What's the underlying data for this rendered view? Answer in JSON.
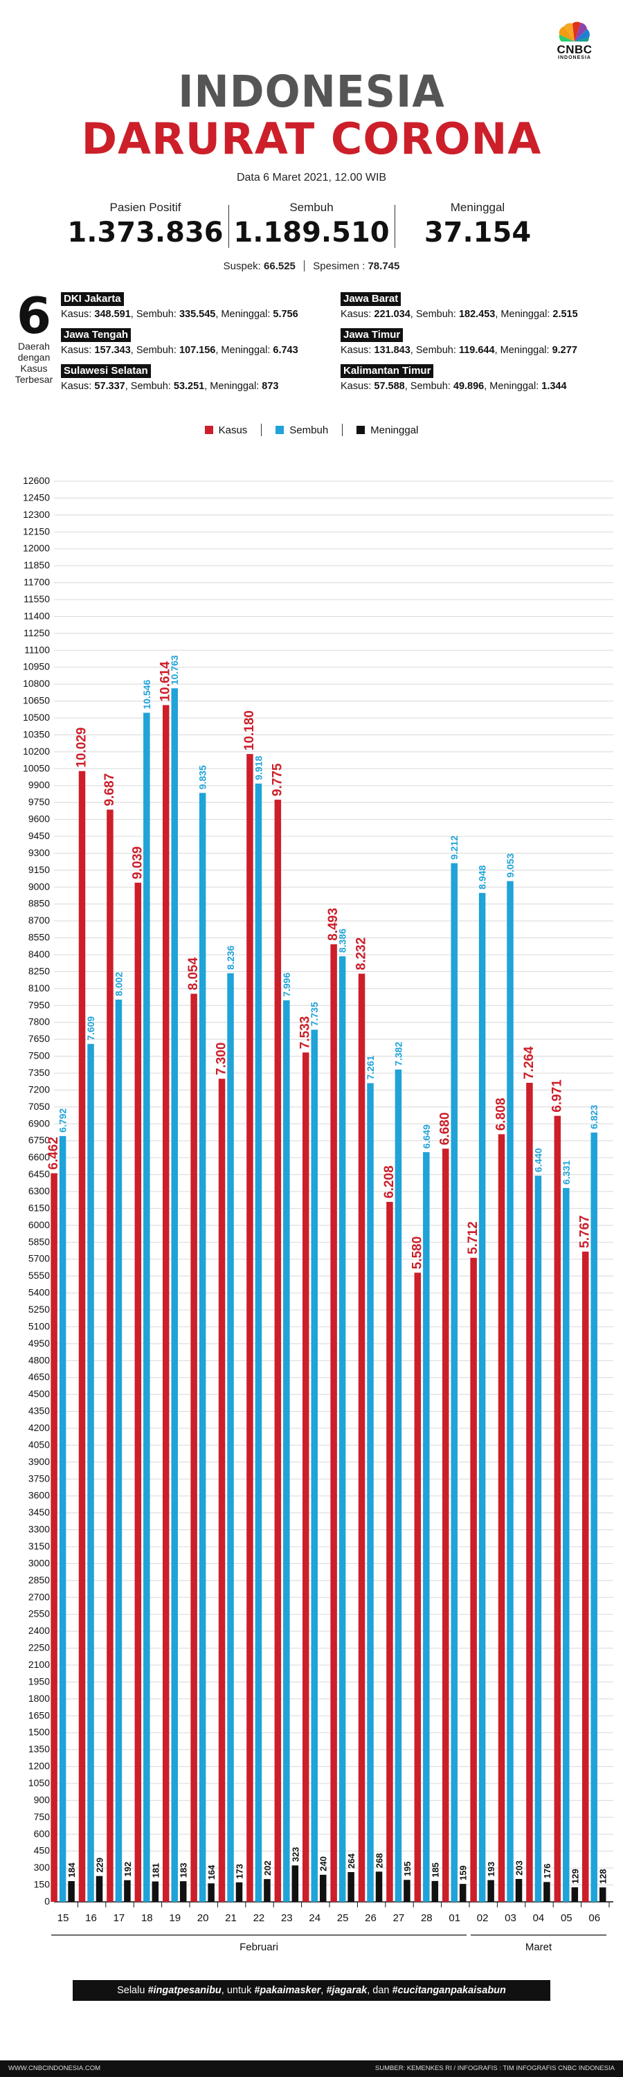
{
  "logo": {
    "text": "CNBC",
    "sub": "INDONESIA"
  },
  "header": {
    "title_line1": "INDONESIA",
    "title_line2": "DARURAT CORONA",
    "date": "Data 6 Maret 2021, 12.00 WIB"
  },
  "stats": [
    {
      "label": "Pasien Positif",
      "value": "1.373.836"
    },
    {
      "label": "Sembuh",
      "value": "1.189.510"
    },
    {
      "label": "Meninggal",
      "value": "37.154"
    }
  ],
  "substats": {
    "suspek_label": "Suspek:",
    "suspek_value": "66.525",
    "spesimen_label": "Spesimen :",
    "spesimen_value": "78.745"
  },
  "regions_intro": {
    "number": "6",
    "text_line1": "Daerah",
    "text_line2": "dengan",
    "text_line3": "Kasus",
    "text_line4": "Terbesar"
  },
  "regions": [
    {
      "name": "DKI Jakarta",
      "kasus": "348.591",
      "sembuh": "335.545",
      "meninggal": "5.756"
    },
    {
      "name": "Jawa Barat",
      "kasus": "221.034",
      "sembuh": "182.453",
      "meninggal": "2.515"
    },
    {
      "name": "Jawa Tengah",
      "kasus": "157.343",
      "sembuh": "107.156",
      "meninggal": "6.743"
    },
    {
      "name": "Jawa Timur",
      "kasus": "131.843",
      "sembuh": "119.644",
      "meninggal": "9.277"
    },
    {
      "name": "Sulawesi Selatan",
      "kasus": "57.337",
      "sembuh": "53.251",
      "meninggal": "873"
    },
    {
      "name": "Kalimantan Timur",
      "kasus": "57.588",
      "sembuh": "49.896",
      "meninggal": "1.344"
    }
  ],
  "region_labels": {
    "kasus": "Kasus:",
    "sembuh": "Sembuh:",
    "meninggal": "Meninggal:"
  },
  "colors": {
    "kasus": "#cc1f2a",
    "sembuh": "#1fa3d8",
    "meninggal": "#111111",
    "title_gray": "#555555"
  },
  "chart_data": {
    "type": "bar",
    "categories": [
      "15",
      "16",
      "17",
      "18",
      "19",
      "20",
      "21",
      "22",
      "23",
      "24",
      "25",
      "26",
      "27",
      "28",
      "01",
      "02",
      "03",
      "04",
      "05",
      "06"
    ],
    "months": [
      {
        "label": "Februari",
        "from": 0,
        "to": 14
      },
      {
        "label": "Maret",
        "from": 15,
        "to": 19
      }
    ],
    "series": [
      {
        "name": "Kasus",
        "color": "#cc1f2a",
        "values": [
          6462,
          10029,
          9687,
          9039,
          10614,
          8054,
          7300,
          10180,
          9775,
          7533,
          8493,
          8232,
          6208,
          5580,
          6680,
          5712,
          6808,
          7264,
          6971,
          5767
        ],
        "labels": [
          "6.462",
          "10.029",
          "9.687",
          "9.039",
          "10.614",
          "8.054",
          "7.300",
          "10.180",
          "9.775",
          "7.533",
          "8.493",
          "8.232",
          "6.208",
          "5.580",
          "6.680",
          "5.712",
          "6.808",
          "7.264",
          "6.971",
          "5.767"
        ]
      },
      {
        "name": "Sembuh",
        "color": "#1fa3d8",
        "values": [
          6792,
          7609,
          8002,
          10546,
          10763,
          9835,
          8236,
          9918,
          7996,
          7735,
          8386,
          7261,
          7382,
          6649,
          9212,
          8948,
          9053,
          6440,
          6331,
          6823
        ],
        "labels": [
          "6.792",
          "7.609",
          "8.002",
          "10.546",
          "10.763",
          "9.835",
          "8.236",
          "9.918",
          "7.996",
          "7.735",
          "8.386",
          "7.261",
          "7.382",
          "6.649",
          "9.212",
          "8.948",
          "9.053",
          "6.440",
          "6.331",
          "6.823"
        ]
      },
      {
        "name": "Meninggal",
        "color": "#111111",
        "values": [
          184,
          229,
          192,
          181,
          183,
          164,
          173,
          202,
          323,
          240,
          264,
          268,
          195,
          185,
          159,
          193,
          203,
          176,
          129,
          128
        ],
        "labels": [
          "184",
          "229",
          "192",
          "181",
          "183",
          "164",
          "173",
          "202",
          "323",
          "240",
          "264",
          "268",
          "195",
          "185",
          "159",
          "193",
          "203",
          "176",
          "129",
          "128"
        ]
      }
    ],
    "ylim": [
      0,
      12600
    ],
    "ytick_step": 150,
    "grid": true,
    "legend": "top-center"
  },
  "footer": {
    "slogan_pre": "Selalu ",
    "tag1": "#ingatpesanibu",
    "slogan_mid1": ", untuk ",
    "tag2": "#pakaimasker",
    "sep1": ", ",
    "tag3": "#jagarak",
    "slogan_mid2": ", dan ",
    "tag4": "#cucitanganpakaisabun",
    "website": "WWW.CNBCINDONESIA.COM",
    "source": "SUMBER: KEMENKES RI / INFOGRAFIS : TIM INFOGRAFIS CNBC INDONESIA"
  }
}
